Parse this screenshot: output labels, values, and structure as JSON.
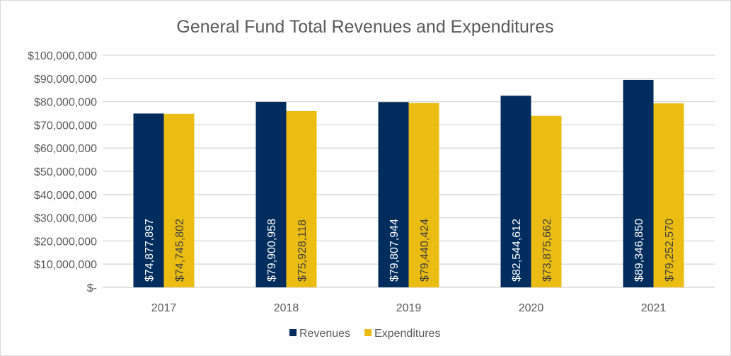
{
  "chart_data": {
    "type": "bar",
    "title": "General Fund Total Revenues and Expenditures",
    "xlabel": "",
    "ylabel": "",
    "categories": [
      "2017",
      "2018",
      "2019",
      "2020",
      "2021"
    ],
    "series": [
      {
        "name": "Revenues",
        "color": "#002d5e",
        "label_color": "#ffffff",
        "values": [
          74877897,
          79900958,
          79807944,
          82544612,
          89346850
        ],
        "labels": [
          "$74,877,897",
          "$79,900,958",
          "$79,807,944",
          "$82,544,612",
          "$89,346,850"
        ]
      },
      {
        "name": "Expenditures",
        "color": "#ebbd13",
        "label_color": "#404040",
        "values": [
          74745802,
          75928118,
          79440424,
          73875662,
          79252570
        ],
        "labels": [
          "$74,745,802",
          "$75,928,118",
          "$79,440,424",
          "$73,875,662",
          "$79,252,570"
        ]
      }
    ],
    "ylim": [
      0,
      100000000
    ],
    "yticks": [
      0,
      10000000,
      20000000,
      30000000,
      40000000,
      50000000,
      60000000,
      70000000,
      80000000,
      90000000,
      100000000
    ],
    "ytick_labels": [
      "$-",
      "$10,000,000",
      "$20,000,000",
      "$30,000,000",
      "$40,000,000",
      "$50,000,000",
      "$60,000,000",
      "$70,000,000",
      "$80,000,000",
      "$90,000,000",
      "$100,000,000"
    ],
    "grid": true,
    "legend_position": "bottom"
  }
}
